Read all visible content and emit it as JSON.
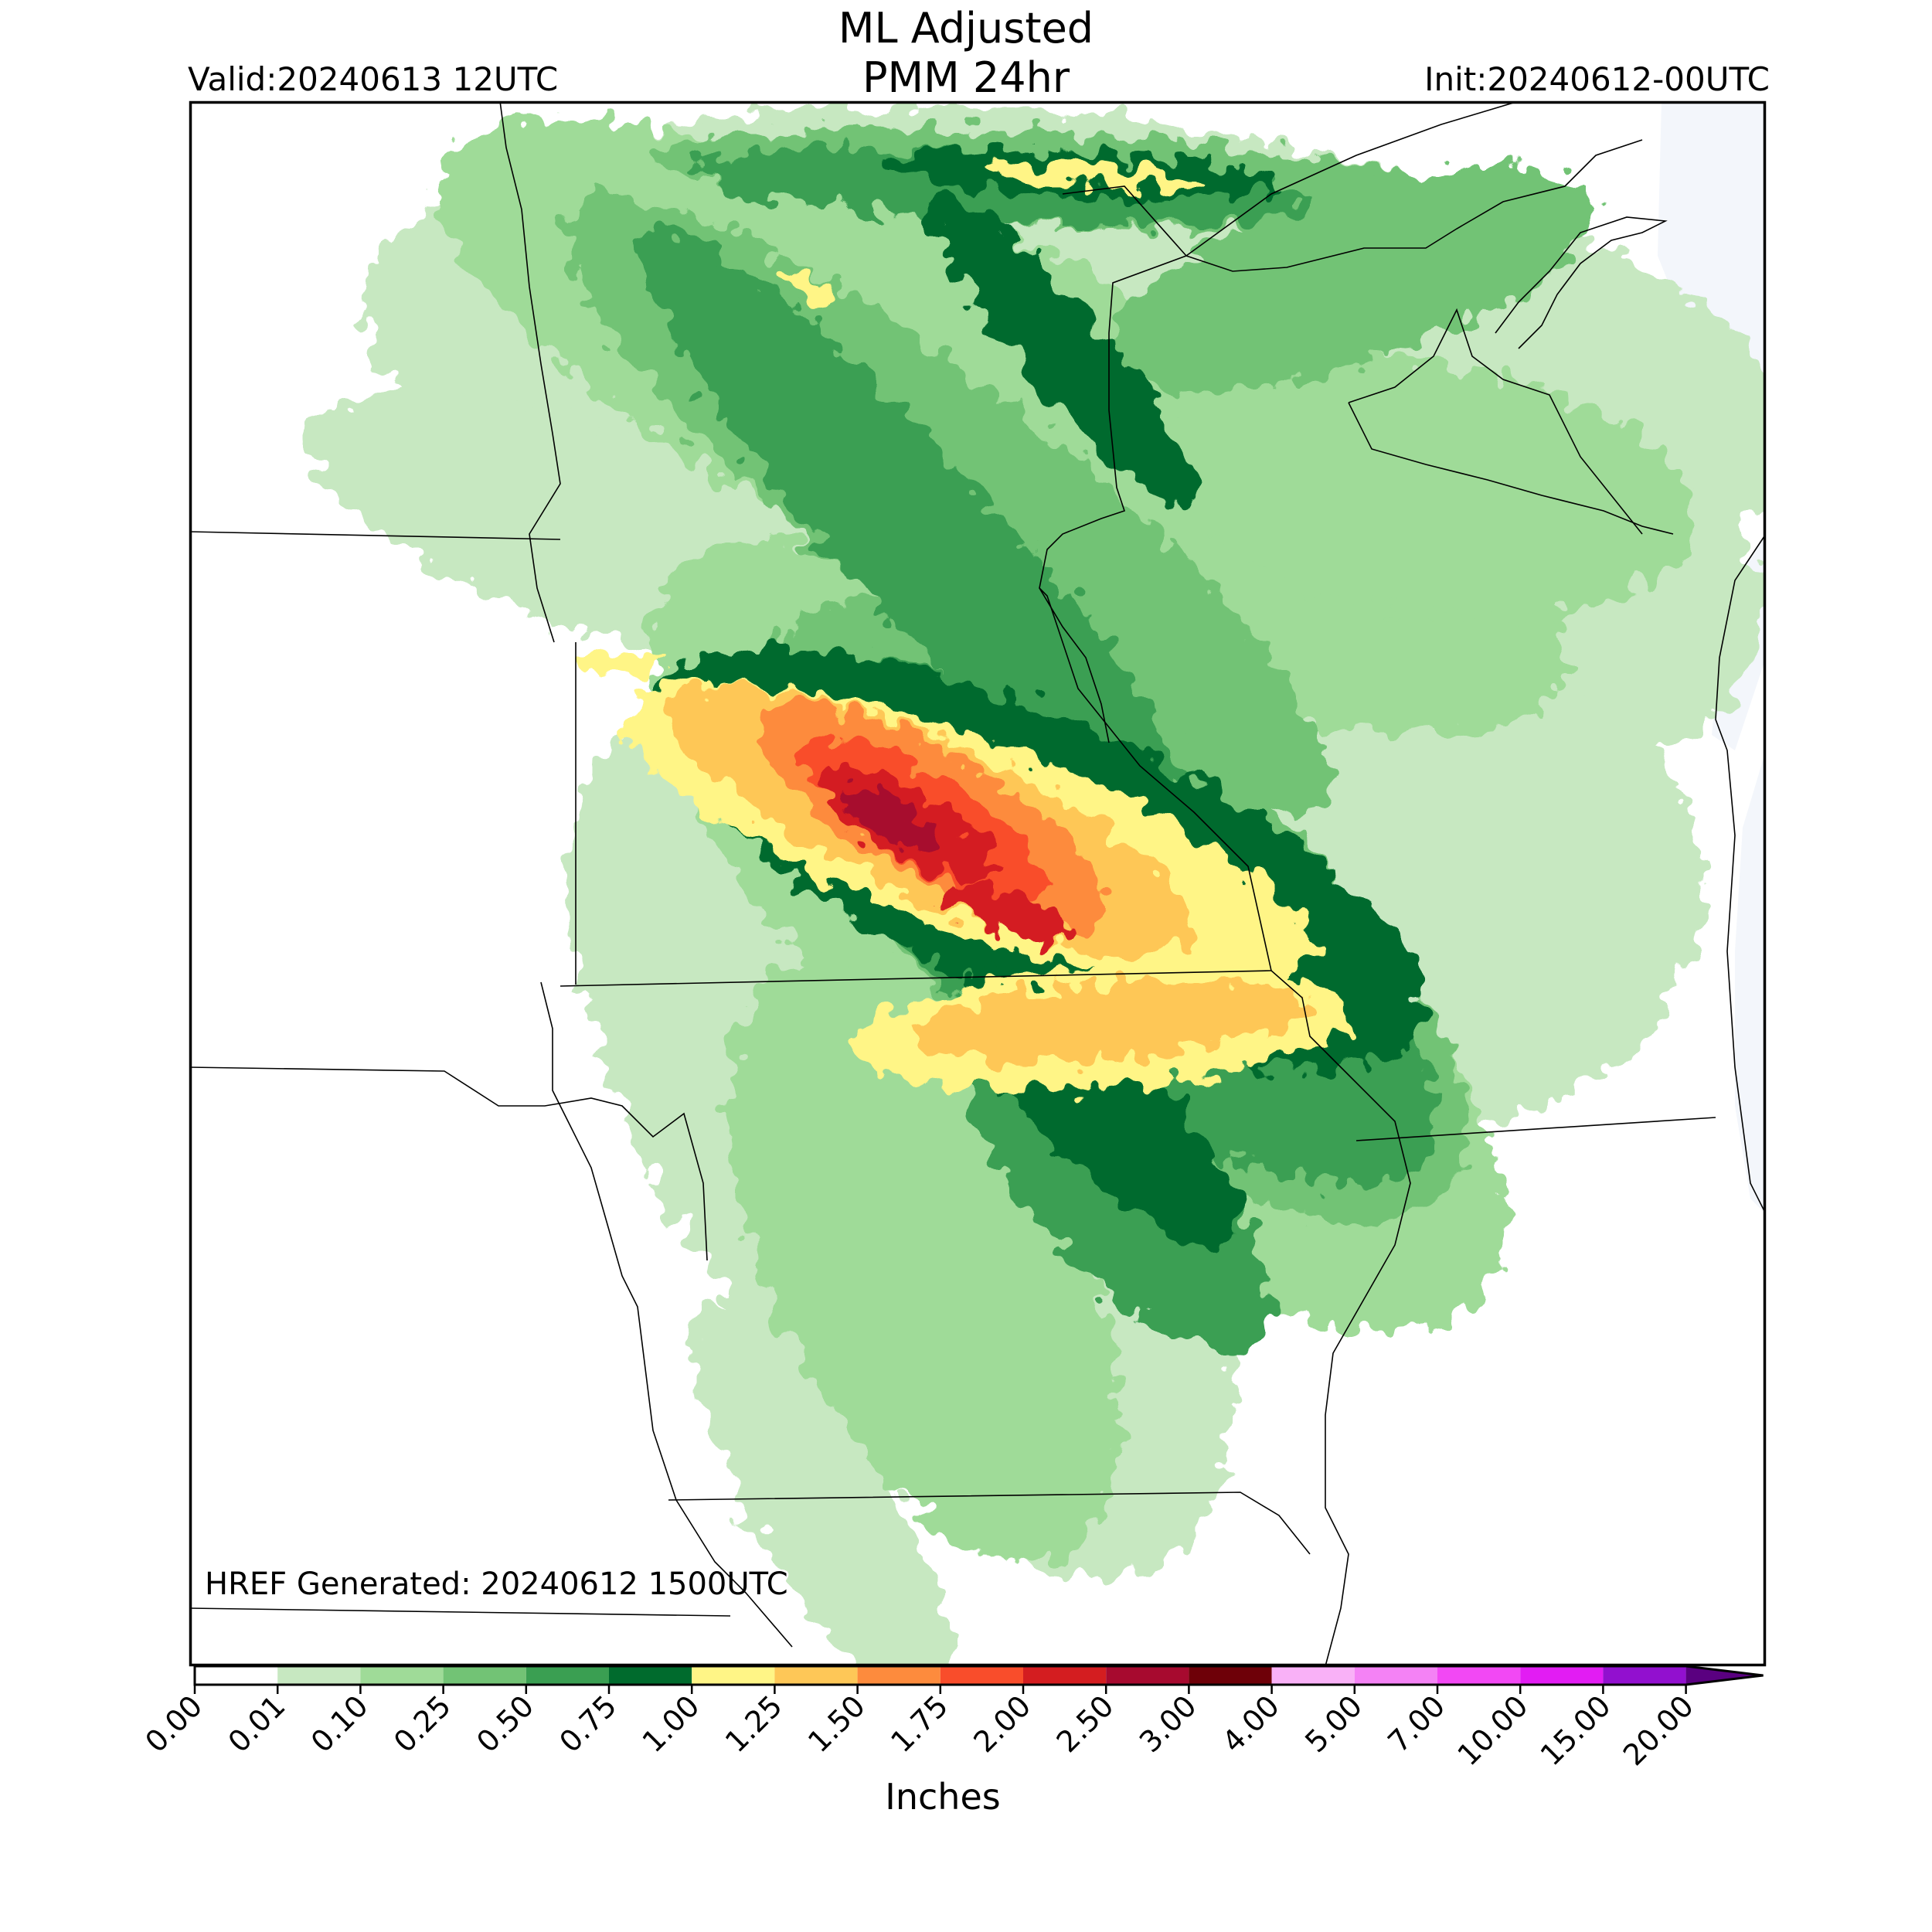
{
  "header": {
    "title_line1": "ML Adjusted",
    "title_line2": "PMM 24hr",
    "valid": "Valid:20240613 12UTC",
    "init": "Init:20240612-00UTC"
  },
  "map": {
    "generated_note": "HREF Generated: 20240612 1500UTC",
    "frame_color": "#000000",
    "water_color": "#f3f6fb",
    "max_value": "3.00"
  },
  "colorbar": {
    "label": "Inches",
    "bins": [
      {
        "from": "0.00",
        "to": "0.01",
        "color": "#ffffff"
      },
      {
        "from": "0.01",
        "to": "0.10",
        "color": "#c7e8c1"
      },
      {
        "from": "0.10",
        "to": "0.25",
        "color": "#9fdb98"
      },
      {
        "from": "0.25",
        "to": "0.50",
        "color": "#72c375"
      },
      {
        "from": "0.50",
        "to": "0.75",
        "color": "#3a9f52"
      },
      {
        "from": "0.75",
        "to": "1.00",
        "color": "#006b2d"
      },
      {
        "from": "1.00",
        "to": "1.25",
        "color": "#fff586"
      },
      {
        "from": "1.25",
        "to": "1.50",
        "color": "#fec757"
      },
      {
        "from": "1.50",
        "to": "1.75",
        "color": "#fd8b3d"
      },
      {
        "from": "1.75",
        "to": "2.00",
        "color": "#f94d2b"
      },
      {
        "from": "2.00",
        "to": "2.50",
        "color": "#d41d20"
      },
      {
        "from": "2.50",
        "to": "3.00",
        "color": "#a70a2f"
      },
      {
        "from": "3.00",
        "to": "4.00",
        "color": "#6e0008"
      },
      {
        "from": "4.00",
        "to": "5.00",
        "color": "#f9b1f7"
      },
      {
        "from": "5.00",
        "to": "7.00",
        "color": "#f482f5"
      },
      {
        "from": "7.00",
        "to": "10.00",
        "color": "#f248f4"
      },
      {
        "from": "10.00",
        "to": "15.00",
        "color": "#e21cf3"
      },
      {
        "from": "15.00",
        "to": "20.00",
        "color": "#9210cf"
      }
    ],
    "extend_color": "#5a0080",
    "ticks": [
      "0.00",
      "0.01",
      "0.10",
      "0.25",
      "0.50",
      "0.75",
      "1.00",
      "1.25",
      "1.50",
      "1.75",
      "2.00",
      "2.50",
      "3.00",
      "4.00",
      "5.00",
      "7.00",
      "10.00",
      "15.00",
      "20.00"
    ]
  }
}
